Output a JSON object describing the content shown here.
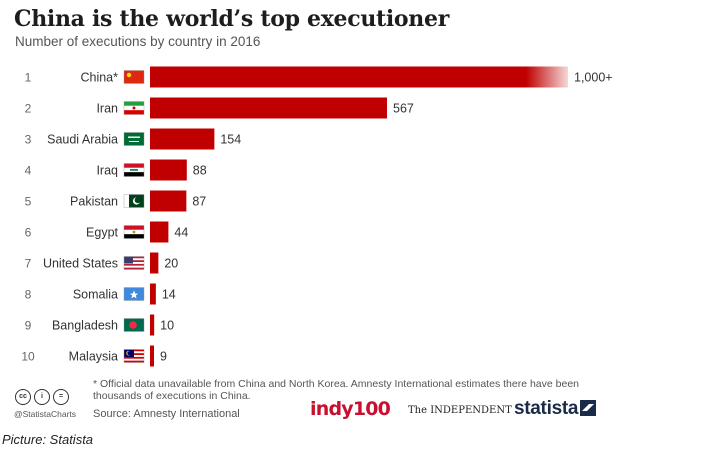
{
  "title": "China is the world’s top executioner",
  "subtitle": "Number of executions by country in 2016",
  "footnote": "* Official data unavailable from China and North Korea. Amnesty International estimates there have been thousands of executions in China.",
  "credits": {
    "handle": "@StatistaCharts",
    "source": "Source: Amnesty International",
    "cc_icons": [
      "cc-icon",
      "by-icon",
      "equals-icon"
    ]
  },
  "logos": {
    "indy100": "indy100",
    "independent": "The INDEPENDENT",
    "statista": "statista"
  },
  "caption": "Picture: Statista",
  "colors": {
    "bar": "#c00000",
    "title": "#1d1d1d",
    "indy": "#c8102e",
    "statista": "#1a2b4a"
  },
  "chart_data": {
    "type": "bar",
    "orientation": "horizontal",
    "categories": [
      "China*",
      "Iran",
      "Saudi Arabia",
      "Iraq",
      "Pakistan",
      "Egypt",
      "United States",
      "Somalia",
      "Bangladesh",
      "Malaysia"
    ],
    "ranks": [
      "1",
      "2",
      "3",
      "4",
      "5",
      "6",
      "7",
      "8",
      "9",
      "10"
    ],
    "values": [
      1000,
      567,
      154,
      88,
      87,
      44,
      20,
      14,
      10,
      9
    ],
    "value_labels": [
      "1,000+",
      "567",
      "154",
      "88",
      "87",
      "44",
      "20",
      "14",
      "10",
      "9"
    ],
    "flags": [
      "china-flag",
      "iran-flag",
      "saudi-arabia-flag",
      "iraq-flag",
      "pakistan-flag",
      "egypt-flag",
      "united-states-flag",
      "somalia-flag",
      "bangladesh-flag",
      "malaysia-flag"
    ],
    "xlim": [
      0,
      1000
    ],
    "grid": false,
    "legend": "none"
  }
}
